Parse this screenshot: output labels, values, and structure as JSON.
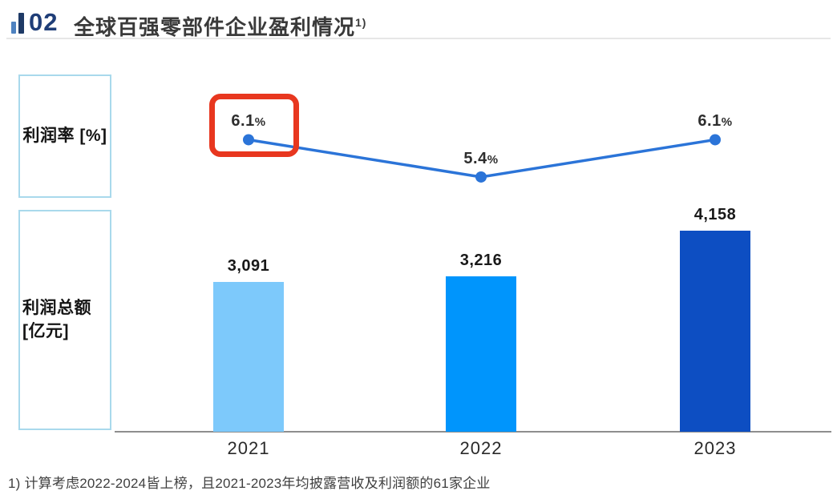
{
  "header": {
    "number": "02",
    "title": "全球百强零部件企业盈利情况",
    "title_superscript": "1)"
  },
  "axis_boxes": {
    "rate_label": "利润率 [%]",
    "total_label_line1": "利润总额",
    "total_label_line2": "[亿元]"
  },
  "footnote": "1) 计算考虑2022-2024皆上榜，且2021-2023年均披露营收及利润额的61家企业",
  "colors": {
    "header_accent_navy": "#1f3e78",
    "header_icon_light": "#4e82c0",
    "header_icon_dark": "#1e3a66",
    "box_border_cyan": "#a9d9ec",
    "line_blue": "#2b74d8",
    "bar_colors": [
      "#7dc9fb",
      "#0095fc",
      "#0d4ec2"
    ],
    "highlight_red": "#e8371f",
    "axis_gray": "#8e8e8e"
  },
  "chart_data": [
    {
      "type": "line",
      "name": "利润率 [%]",
      "categories": [
        "2021",
        "2022",
        "2023"
      ],
      "values": [
        6.1,
        5.4,
        6.1
      ],
      "labels": [
        "6.1%",
        "5.4%",
        "6.1%"
      ],
      "annotations": [
        {
          "type": "highlight-box",
          "series": "利润率",
          "category": "2021",
          "label": "6.1%",
          "color": "#e8371f"
        }
      ]
    },
    {
      "type": "bar",
      "name": "利润总额 [亿元]",
      "categories": [
        "2021",
        "2022",
        "2023"
      ],
      "values": [
        3091,
        3216,
        4158
      ],
      "labels": [
        "3,091",
        "3,216",
        "4,158"
      ]
    }
  ]
}
